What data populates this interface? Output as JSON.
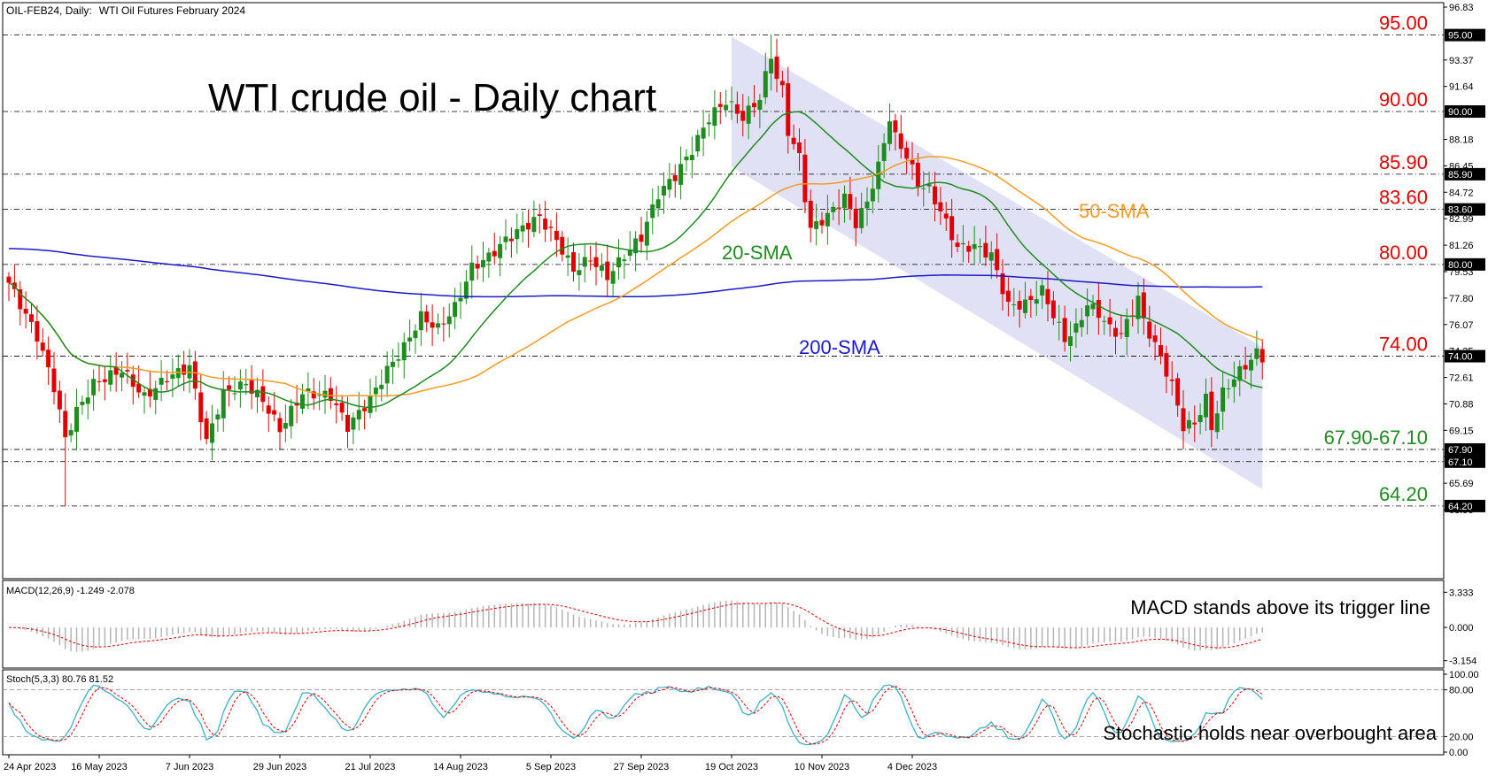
{
  "header": {
    "symbol": "OIL-FEB24, Daily:",
    "description": "WTI Oil Futures February 2024"
  },
  "chart_data": {
    "type": "candlestick",
    "title": "WTI crude oil - Daily chart",
    "ylim": [
      63.5,
      96.83
    ],
    "y_ticks": [
      "96.83",
      "93.37",
      "91.64",
      "88.18",
      "86.45",
      "84.72",
      "82.99",
      "81.26",
      "79.53",
      "77.80",
      "76.07",
      "74.35",
      "72.61",
      "70.88",
      "69.15",
      "67.42",
      "65.69",
      "63.96"
    ],
    "x_ticks": [
      "24 Apr 2023",
      "16 May 2023",
      "7 Jun 2023",
      "29 Jun 2023",
      "21 Jul 2023",
      "14 Aug 2023",
      "5 Sep 2023",
      "27 Sep 2023",
      "19 Oct 2023",
      "10 Nov 2023",
      "4 Dec 2023"
    ],
    "close_anchors": [
      [
        0,
        78.8
      ],
      [
        5,
        75.3
      ],
      [
        8,
        72.0
      ],
      [
        10,
        68.6
      ],
      [
        12,
        70.4
      ],
      [
        15,
        72.2
      ],
      [
        20,
        73.1
      ],
      [
        24,
        71.3
      ],
      [
        28,
        72.6
      ],
      [
        32,
        73.3
      ],
      [
        35,
        68.4
      ],
      [
        38,
        71.6
      ],
      [
        42,
        72.2
      ],
      [
        45,
        71.1
      ],
      [
        48,
        69.2
      ],
      [
        52,
        71.6
      ],
      [
        57,
        71.4
      ],
      [
        60,
        69.4
      ],
      [
        64,
        71.2
      ],
      [
        67,
        73.1
      ],
      [
        70,
        74.6
      ],
      [
        73,
        76.6
      ],
      [
        76,
        75.8
      ],
      [
        79,
        77.2
      ],
      [
        82,
        79.8
      ],
      [
        85,
        80.5
      ],
      [
        88,
        81.6
      ],
      [
        91,
        82.4
      ],
      [
        94,
        83.1
      ],
      [
        97,
        81.6
      ],
      [
        100,
        79.6
      ],
      [
        103,
        80.4
      ],
      [
        106,
        79.2
      ],
      [
        109,
        80.6
      ],
      [
        112,
        81.8
      ],
      [
        115,
        84.6
      ],
      [
        118,
        85.8
      ],
      [
        121,
        87.5
      ],
      [
        124,
        89.6
      ],
      [
        127,
        90.7
      ],
      [
        130,
        89.6
      ],
      [
        133,
        90.9
      ],
      [
        135,
        93.7
      ],
      [
        136,
        92.2
      ],
      [
        137,
        91.4
      ],
      [
        138,
        88.7
      ],
      [
        140,
        87.0
      ],
      [
        141,
        84.4
      ],
      [
        142,
        82.3
      ],
      [
        145,
        83.2
      ],
      [
        148,
        84.4
      ],
      [
        150,
        82.7
      ],
      [
        152,
        84.1
      ],
      [
        154,
        86.4
      ],
      [
        156,
        89.6
      ],
      [
        157,
        88.3
      ],
      [
        159,
        87.1
      ],
      [
        161,
        85.3
      ],
      [
        163,
        84.9
      ],
      [
        165,
        83.5
      ],
      [
        168,
        81.1
      ],
      [
        171,
        81.2
      ],
      [
        174,
        80.6
      ],
      [
        177,
        77.3
      ],
      [
        180,
        77.4
      ],
      [
        183,
        78.3
      ],
      [
        186,
        75.9
      ],
      [
        187,
        75.1
      ],
      [
        189,
        75.8
      ],
      [
        191,
        77.4
      ],
      [
        193,
        76.8
      ],
      [
        195,
        75.8
      ],
      [
        197,
        75.4
      ],
      [
        200,
        77.8
      ],
      [
        201,
        76.3
      ],
      [
        204,
        73.9
      ],
      [
        206,
        72.1
      ],
      [
        208,
        69.4
      ],
      [
        210,
        69.6
      ],
      [
        212,
        71.2
      ],
      [
        213,
        69.3
      ],
      [
        215,
        71.6
      ],
      [
        217,
        72.6
      ],
      [
        219,
        73.4
      ],
      [
        221,
        74.2
      ],
      [
        222,
        73.9
      ]
    ],
    "series": [
      {
        "name": "20-SMA",
        "color": "#1e8c1e"
      },
      {
        "name": "50-SMA",
        "color": "#f59a23"
      },
      {
        "name": "200-SMA",
        "color": "#1a1acc"
      }
    ],
    "levels": [
      {
        "value": 95.0,
        "label": "95.00",
        "box": "95.00",
        "color": "#e00000"
      },
      {
        "value": 90.0,
        "label": "90.00",
        "box": "90.00",
        "color": "#e00000"
      },
      {
        "value": 85.9,
        "label": "85.90",
        "box": "85.90",
        "color": "#e00000"
      },
      {
        "value": 83.6,
        "label": "83.60",
        "box": "83.60",
        "color": "#e00000"
      },
      {
        "value": 80.0,
        "label": "80.00",
        "box": "80.00",
        "color": "#e00000"
      },
      {
        "value": 74.0,
        "label": "74.00",
        "box": "74.00",
        "color": "#e00000"
      },
      {
        "value": 67.9,
        "label": "67.90-67.10",
        "box": "67.90",
        "color": "#1e8c1e"
      },
      {
        "value": 67.1,
        "label": "",
        "box": "67.10",
        "color": "#1e8c1e"
      },
      {
        "value": 64.2,
        "label": "64.20",
        "box": "64.20",
        "color": "#1e8c1e"
      }
    ],
    "channel": {
      "from": [
        128,
        94.9,
        86.4
      ],
      "to": [
        222,
        74.6,
        65.3
      ],
      "color": "#dcdcf5"
    },
    "annotations": {
      "sma20": "20-SMA",
      "sma50": "50-SMA",
      "sma200": "200-SMA"
    },
    "macd": {
      "label": "MACD(12,26,9) -1.249 -2.078",
      "ylim": [
        -3.6,
        3.7
      ],
      "ticks": [
        "3.333",
        "0.000",
        "-3.154"
      ],
      "note": "MACD stands above its trigger line",
      "hist_color": "#b4b4b4",
      "signal_color": "#e00000"
    },
    "stoch": {
      "label": "Stoch(5,3,3) 80.76 81.52",
      "ylim": [
        0,
        100
      ],
      "ticks": [
        "100.00",
        "80.00",
        "20.00",
        "0.00"
      ],
      "note": "Stochastic holds near overbought area",
      "k_color": "#3cb0c8",
      "d_color": "#e00000"
    },
    "colors": {
      "up": "#1e8c1e",
      "down": "#e00000",
      "price_text": "#e00000"
    }
  }
}
